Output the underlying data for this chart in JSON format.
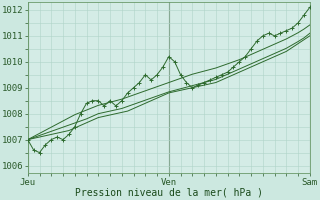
{
  "bg_color": "#cce8e0",
  "plot_bg": "#d4ece6",
  "grid_color": "#b0d4c8",
  "line_color": "#2d6a2d",
  "dark_line_color": "#1a4a1a",
  "ylabel_text": "Pression niveau de la mer( hPa )",
  "x_ticks_pos": [
    0,
    48,
    96
  ],
  "x_tick_labels": [
    "Jeu",
    "Ven",
    "Sam"
  ],
  "ylim": [
    1005.7,
    1012.3
  ],
  "yticks": [
    1006,
    1007,
    1008,
    1009,
    1010,
    1011,
    1012
  ],
  "xlim": [
    0,
    96
  ],
  "n_points": 49,
  "series_zigzag": [
    1007.0,
    1006.6,
    1006.5,
    1006.8,
    1007.0,
    1007.1,
    1007.0,
    1007.2,
    1007.5,
    1008.0,
    1008.4,
    1008.5,
    1008.5,
    1008.3,
    1008.5,
    1008.3,
    1008.5,
    1008.8,
    1009.0,
    1009.2,
    1009.5,
    1009.3,
    1009.5,
    1009.8,
    1010.2,
    1010.0,
    1009.5,
    1009.2,
    1009.0,
    1009.1,
    1009.2,
    1009.3,
    1009.4,
    1009.5,
    1009.6,
    1009.8,
    1010.0,
    1010.2,
    1010.5,
    1010.8,
    1011.0,
    1011.1,
    1011.0,
    1011.1,
    1011.2,
    1011.3,
    1011.5,
    1011.8,
    1012.1
  ],
  "series_linear1": [
    1007.0,
    1007.05,
    1007.1,
    1007.15,
    1007.2,
    1007.25,
    1007.3,
    1007.35,
    1007.45,
    1007.55,
    1007.65,
    1007.75,
    1007.85,
    1007.9,
    1007.95,
    1008.0,
    1008.05,
    1008.1,
    1008.2,
    1008.3,
    1008.4,
    1008.5,
    1008.6,
    1008.7,
    1008.8,
    1008.85,
    1008.9,
    1008.95,
    1009.0,
    1009.05,
    1009.1,
    1009.15,
    1009.2,
    1009.3,
    1009.4,
    1009.5,
    1009.6,
    1009.7,
    1009.8,
    1009.9,
    1010.0,
    1010.1,
    1010.2,
    1010.3,
    1010.4,
    1010.55,
    1010.7,
    1010.85,
    1011.0
  ],
  "series_linear2": [
    1007.0,
    1007.08,
    1007.16,
    1007.24,
    1007.32,
    1007.4,
    1007.48,
    1007.56,
    1007.64,
    1007.72,
    1007.8,
    1007.9,
    1008.0,
    1008.05,
    1008.1,
    1008.15,
    1008.2,
    1008.28,
    1008.36,
    1008.44,
    1008.52,
    1008.6,
    1008.68,
    1008.76,
    1008.84,
    1008.9,
    1008.96,
    1009.02,
    1009.08,
    1009.14,
    1009.2,
    1009.26,
    1009.32,
    1009.42,
    1009.52,
    1009.62,
    1009.72,
    1009.82,
    1009.92,
    1010.02,
    1010.12,
    1010.22,
    1010.32,
    1010.42,
    1010.52,
    1010.65,
    1010.78,
    1010.92,
    1011.1
  ],
  "series_linear3": [
    1007.0,
    1007.12,
    1007.24,
    1007.36,
    1007.48,
    1007.6,
    1007.72,
    1007.84,
    1007.96,
    1008.05,
    1008.14,
    1008.23,
    1008.32,
    1008.38,
    1008.44,
    1008.5,
    1008.56,
    1008.64,
    1008.72,
    1008.8,
    1008.88,
    1008.96,
    1009.04,
    1009.12,
    1009.2,
    1009.28,
    1009.36,
    1009.44,
    1009.52,
    1009.58,
    1009.64,
    1009.7,
    1009.76,
    1009.84,
    1009.92,
    1010.0,
    1010.08,
    1010.18,
    1010.28,
    1010.38,
    1010.48,
    1010.58,
    1010.68,
    1010.78,
    1010.88,
    1011.0,
    1011.12,
    1011.26,
    1011.42
  ]
}
